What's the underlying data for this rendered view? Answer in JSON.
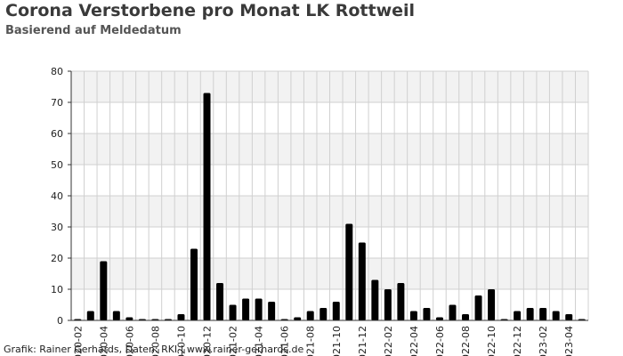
{
  "header": {
    "title": "Corona Verstorbene pro Monat LK Rottweil",
    "subtitle": "Basierend auf Meldedatum"
  },
  "footer": {
    "credit": "Grafik: Rainer Gerhards, Daten: RKI | www.rainer-gerhards.de"
  },
  "colors": {
    "bar": "#000000",
    "band": "#f2f2f2",
    "grid": "#d0d0d0",
    "axis": "#333333"
  },
  "chart_data": {
    "type": "bar",
    "title": "Corona Verstorbene pro Monat LK Rottweil",
    "subtitle": "Basierend auf Meldedatum",
    "categories": [
      "2020-02",
      "2020-03",
      "2020-04",
      "2020-05",
      "2020-06",
      "2020-07",
      "2020-08",
      "2020-09",
      "2020-10",
      "2020-11",
      "2020-12",
      "2021-01",
      "2021-02",
      "2021-03",
      "2021-04",
      "2021-05",
      "2021-06",
      "2021-07",
      "2021-08",
      "2021-09",
      "2021-10",
      "2021-11",
      "2021-12",
      "2022-01",
      "2022-02",
      "2022-03",
      "2022-04",
      "2022-05",
      "2022-06",
      "2022-07",
      "2022-08",
      "2022-09",
      "2022-10",
      "2022-11",
      "2022-12",
      "2023-01",
      "2023-02",
      "2023-03",
      "2023-04",
      "2023-05"
    ],
    "values": [
      0,
      3,
      19,
      3,
      1,
      0,
      0,
      0,
      2,
      23,
      73,
      12,
      5,
      7,
      7,
      6,
      0,
      1,
      3,
      4,
      6,
      31,
      25,
      13,
      10,
      12,
      3,
      4,
      1,
      5,
      2,
      8,
      10,
      0,
      3,
      4,
      4,
      3,
      2,
      0
    ],
    "tick_labels": [
      {
        "index": 0,
        "label": "2020-02"
      },
      {
        "index": 2,
        "label": "2020-04"
      },
      {
        "index": 4,
        "label": "2020-06"
      },
      {
        "index": 6,
        "label": "2020-08"
      },
      {
        "index": 8,
        "label": "2020-10"
      },
      {
        "index": 10,
        "label": "2020-12"
      },
      {
        "index": 12,
        "label": "2021-02"
      },
      {
        "index": 14,
        "label": "2021-04"
      },
      {
        "index": 16,
        "label": "2021-06"
      },
      {
        "index": 18,
        "label": "2021-08"
      },
      {
        "index": 20,
        "label": "2021-10"
      },
      {
        "index": 22,
        "label": "2021-12"
      },
      {
        "index": 24,
        "label": "2022-02"
      },
      {
        "index": 26,
        "label": "2022-04"
      },
      {
        "index": 28,
        "label": "2022-06"
      },
      {
        "index": 30,
        "label": "2022-08"
      },
      {
        "index": 32,
        "label": "2022-10"
      },
      {
        "index": 34,
        "label": "2022-12"
      },
      {
        "index": 36,
        "label": "2023-02"
      },
      {
        "index": 38,
        "label": "2023-04"
      }
    ],
    "yticks": [
      0,
      10,
      20,
      30,
      40,
      50,
      60,
      70,
      80
    ],
    "xlabel": "",
    "ylabel": "",
    "ylim": [
      0,
      80
    ],
    "grid": true,
    "legend": "none"
  }
}
